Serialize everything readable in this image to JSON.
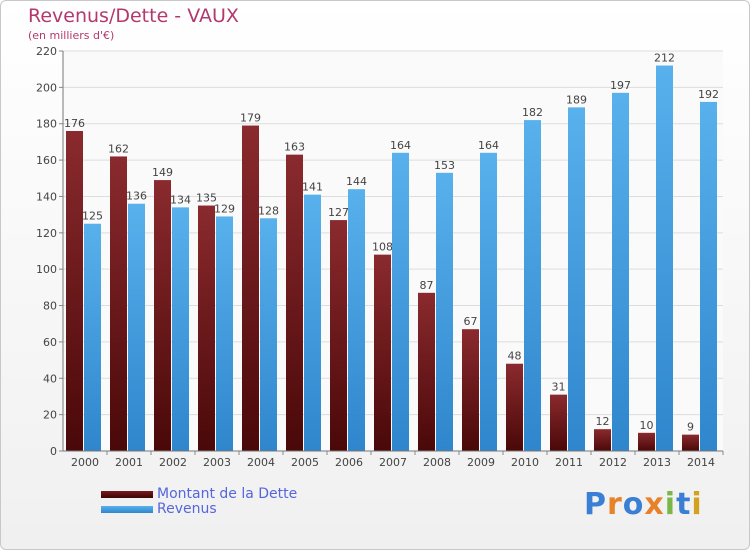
{
  "chart_data": {
    "type": "bar",
    "title": "Revenus/Dette - VAUX",
    "subtitle": "(en milliers d'€)",
    "categories": [
      "2000",
      "2001",
      "2002",
      "2003",
      "2004",
      "2005",
      "2006",
      "2007",
      "2008",
      "2009",
      "2010",
      "2011",
      "2012",
      "2013",
      "2014"
    ],
    "series": [
      {
        "name": "Montant de la Dette",
        "color": "#7a1a1d",
        "values": [
          176,
          162,
          149,
          135,
          179,
          163,
          127,
          108,
          87,
          67,
          48,
          31,
          12,
          10,
          9
        ]
      },
      {
        "name": "Revenus",
        "color": "#4aa3e6",
        "values": [
          125,
          136,
          134,
          129,
          128,
          141,
          144,
          164,
          153,
          164,
          182,
          189,
          197,
          212,
          192
        ]
      }
    ],
    "ylim": [
      0,
      220
    ],
    "yticks": [
      0,
      20,
      40,
      60,
      80,
      100,
      120,
      140,
      160,
      180,
      200,
      220
    ],
    "grid": true,
    "legend_position": "bottom-left"
  },
  "logo": {
    "text": "Proxiti",
    "letters": [
      {
        "ch": "P",
        "color": "#3b7fd4"
      },
      {
        "ch": "r",
        "color": "#e8822a"
      },
      {
        "ch": "o",
        "color": "#3b7fd4"
      },
      {
        "ch": "x",
        "color": "#e8822a"
      },
      {
        "ch": "i",
        "color": "#7ab648"
      },
      {
        "ch": "t",
        "color": "#3b7fd4"
      },
      {
        "ch": "i",
        "color": "#d4a020"
      }
    ]
  }
}
